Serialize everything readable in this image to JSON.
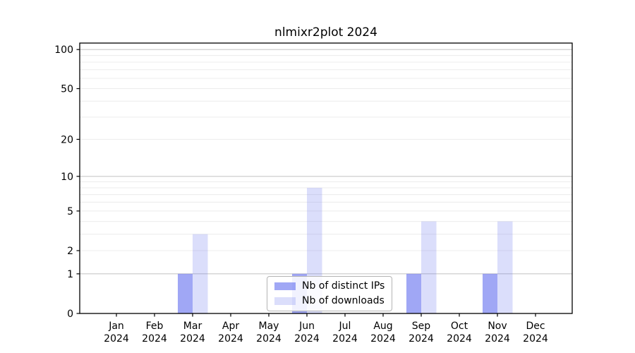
{
  "figure": {
    "title": "nlmixr2plot 2024"
  },
  "chart_data": {
    "type": "bar",
    "title": "nlmixr2plot 2024",
    "categories": [
      "Jan 2024",
      "Feb 2024",
      "Mar 2024",
      "Apr 2024",
      "May 2024",
      "Jun 2024",
      "Jul 2024",
      "Aug 2024",
      "Sep 2024",
      "Oct 2024",
      "Nov 2024",
      "Dec 2024"
    ],
    "series": [
      {
        "name": "Nb of distinct IPs",
        "values": [
          0,
          0,
          1,
          0,
          0,
          1,
          0,
          0,
          1,
          0,
          1,
          0
        ],
        "color": "rgba(92,103,237,0.58)"
      },
      {
        "name": "Nb of downloads",
        "values": [
          0,
          0,
          3,
          0,
          0,
          8,
          0,
          0,
          4,
          0,
          4,
          0
        ],
        "color": "rgba(92,103,237,0.22)"
      }
    ],
    "base_color": "#5c67ed",
    "xlabel": "",
    "ylabel": "",
    "y_scale": "log1p",
    "ylim": [
      0,
      112
    ],
    "y_tick_labels": [
      0,
      1,
      2,
      5,
      10,
      20,
      50,
      100
    ],
    "gridlines": {
      "major": [
        1,
        10,
        100
      ],
      "minor": [
        2,
        3,
        4,
        5,
        6,
        7,
        8,
        9,
        20,
        30,
        40,
        50,
        60,
        70,
        80,
        90
      ],
      "major_color": "#c9c9c9",
      "minor_color": "#ececec"
    },
    "grid": "horizontal-only",
    "legend_position": "lower-center-inside",
    "frame_color": "#000000"
  }
}
